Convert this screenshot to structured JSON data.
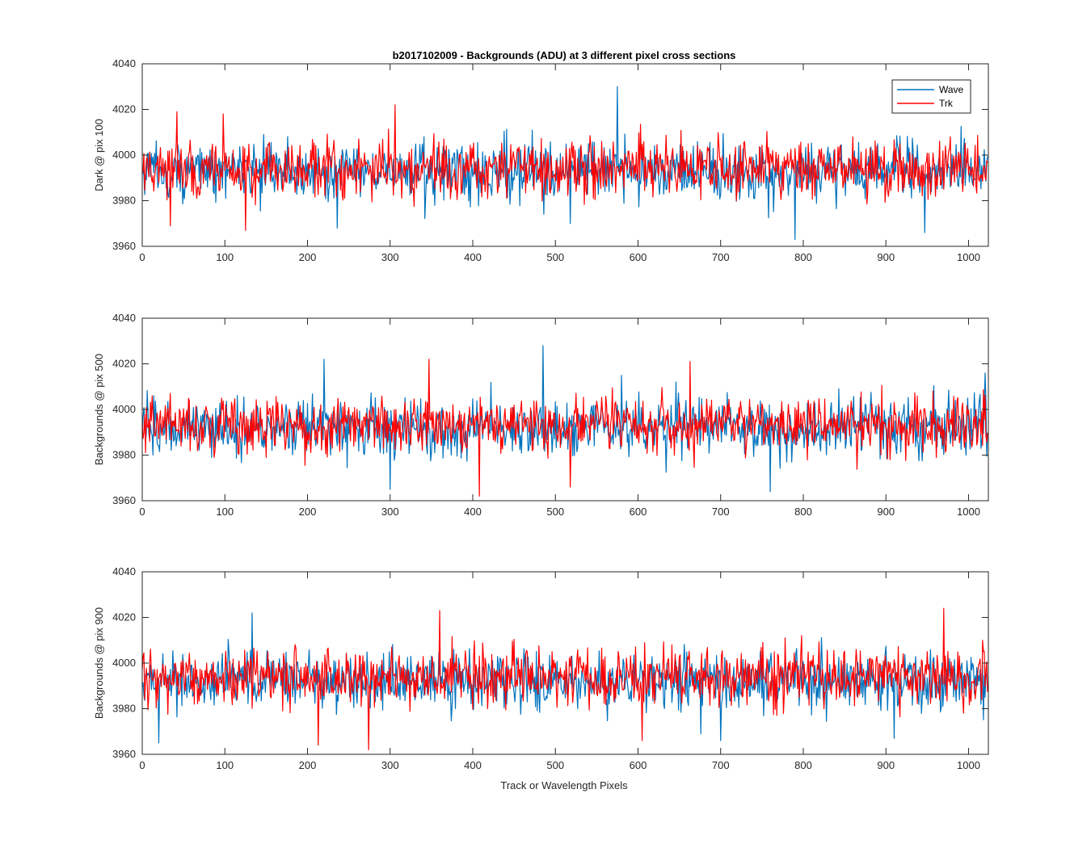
{
  "figure": {
    "title": "b2017102009 - Backgrounds (ADU) at 3 different pixel cross sections",
    "xlabel": "Track or Wavelength Pixels"
  },
  "colors": {
    "wave": "#0072BD",
    "trk": "#FF0000",
    "axis": "#262626",
    "background": "#ffffff"
  },
  "chart_data": [
    {
      "type": "line",
      "ylabel": "Dark @ pix 100",
      "xlim": [
        0,
        1024
      ],
      "ylim": [
        3960,
        4040
      ],
      "xticks": [
        0,
        100,
        200,
        300,
        400,
        500,
        600,
        700,
        800,
        900,
        1000
      ],
      "yticks": [
        3960,
        3980,
        4000,
        4020,
        4040
      ],
      "legend": {
        "position": "top-right",
        "entries": [
          "Wave",
          "Trk"
        ]
      },
      "series": [
        {
          "name": "Wave",
          "color": "#0072BD",
          "n_points": 1024,
          "mean": 3993,
          "noise_range": [
            3963,
            4030
          ],
          "spikes": [
            [
              575,
              4030
            ],
            [
              790,
              3963
            ],
            [
              947,
              3966
            ],
            [
              236,
              3968
            ]
          ]
        },
        {
          "name": "Trk",
          "color": "#FF0000",
          "n_points": 1024,
          "mean": 3994,
          "noise_range": [
            3967,
            4022
          ],
          "spikes": [
            [
              42,
              4019
            ],
            [
              98,
              4018
            ],
            [
              306,
              4022
            ],
            [
              125,
              3967
            ],
            [
              34,
              3969
            ]
          ]
        }
      ]
    },
    {
      "type": "line",
      "ylabel": "Backgrounds @ pix 500",
      "xlim": [
        0,
        1024
      ],
      "ylim": [
        3960,
        4040
      ],
      "xticks": [
        0,
        100,
        200,
        300,
        400,
        500,
        600,
        700,
        800,
        900,
        1000
      ],
      "yticks": [
        3960,
        3980,
        4000,
        4020,
        4040
      ],
      "series": [
        {
          "name": "Wave",
          "color": "#0072BD",
          "n_points": 1024,
          "mean": 3992,
          "noise_range": [
            3964,
            4028
          ],
          "spikes": [
            [
              485,
              4028
            ],
            [
              220,
              4022
            ],
            [
              300,
              3965
            ],
            [
              760,
              3964
            ],
            [
              1020,
              4016
            ]
          ]
        },
        {
          "name": "Trk",
          "color": "#FF0000",
          "n_points": 1024,
          "mean": 3993,
          "noise_range": [
            3962,
            4022
          ],
          "spikes": [
            [
              347,
              4022
            ],
            [
              408,
              3962
            ],
            [
              663,
              4021
            ],
            [
              518,
              3966
            ]
          ]
        }
      ]
    },
    {
      "type": "line",
      "ylabel": "Backgrounds @ pix 900",
      "xlim": [
        0,
        1024
      ],
      "ylim": [
        3960,
        4040
      ],
      "xticks": [
        0,
        100,
        200,
        300,
        400,
        500,
        600,
        700,
        800,
        900,
        1000
      ],
      "yticks": [
        3960,
        3980,
        4000,
        4020,
        4040
      ],
      "series": [
        {
          "name": "Wave",
          "color": "#0072BD",
          "n_points": 1024,
          "mean": 3992,
          "noise_range": [
            3965,
            4022
          ],
          "spikes": [
            [
              133,
              4022
            ],
            [
              20,
              3965
            ],
            [
              700,
              3966
            ],
            [
              910,
              3967
            ]
          ]
        },
        {
          "name": "Trk",
          "color": "#FF0000",
          "n_points": 1024,
          "mean": 3994,
          "noise_range": [
            3962,
            4024
          ],
          "spikes": [
            [
              360,
              4023
            ],
            [
              970,
              4024
            ],
            [
              274,
              3962
            ],
            [
              605,
              3966
            ],
            [
              213,
              3964
            ]
          ]
        }
      ]
    }
  ]
}
